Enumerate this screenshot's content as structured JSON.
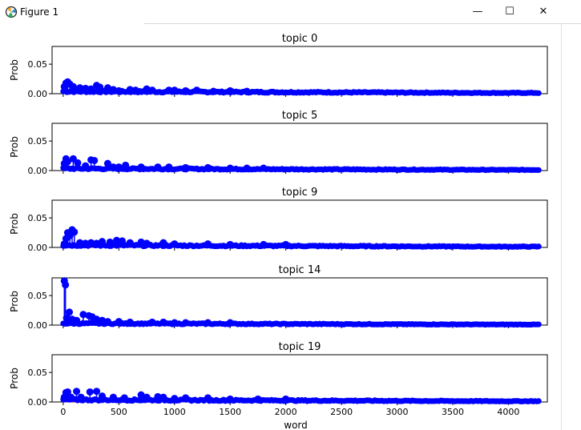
{
  "window": {
    "title": "Figure 1",
    "minimize_glyph": "—",
    "maximize_glyph": "☐",
    "close_glyph": "✕",
    "icon": "matplotlib-figure-icon"
  },
  "chart_data": {
    "type": "stem",
    "layout": "5 stacked subplots sharing x axis",
    "marker_color": "#0000ff",
    "xlabel": "word",
    "ylabel": "Prob",
    "xlim": [
      -100,
      4350
    ],
    "ylim": [
      0,
      0.08
    ],
    "xticks": [
      0,
      500,
      1000,
      1500,
      2000,
      2500,
      3000,
      3500,
      4000
    ],
    "yticks": [
      0.0,
      0.05
    ],
    "xtick_labels": [
      "0",
      "500",
      "1000",
      "1500",
      "2000",
      "2500",
      "3000",
      "3500",
      "4000"
    ],
    "ytick_labels": [
      "0.00",
      "0.05"
    ],
    "x_max": 4280,
    "subplots": [
      {
        "title": "topic 0",
        "peaks": [
          [
            10,
            0.012
          ],
          [
            25,
            0.018
          ],
          [
            40,
            0.02
          ],
          [
            60,
            0.016
          ],
          [
            90,
            0.012
          ],
          [
            150,
            0.01
          ],
          [
            200,
            0.009
          ],
          [
            250,
            0.008
          ],
          [
            300,
            0.014
          ],
          [
            330,
            0.011
          ],
          [
            400,
            0.01
          ],
          [
            450,
            0.007
          ],
          [
            500,
            0.005
          ],
          [
            600,
            0.007
          ],
          [
            650,
            0.006
          ],
          [
            750,
            0.008
          ],
          [
            800,
            0.006
          ],
          [
            950,
            0.006
          ],
          [
            1000,
            0.006
          ],
          [
            1100,
            0.005
          ],
          [
            1200,
            0.006
          ],
          [
            1350,
            0.004
          ],
          [
            1500,
            0.005
          ],
          [
            1650,
            0.004
          ]
        ],
        "baseline": 0.004
      },
      {
        "title": "topic 5",
        "peaks": [
          [
            10,
            0.012
          ],
          [
            25,
            0.02
          ],
          [
            40,
            0.015
          ],
          [
            90,
            0.02
          ],
          [
            130,
            0.013
          ],
          [
            200,
            0.008
          ],
          [
            250,
            0.018
          ],
          [
            280,
            0.017
          ],
          [
            400,
            0.012
          ],
          [
            450,
            0.006
          ],
          [
            500,
            0.006
          ],
          [
            560,
            0.009
          ],
          [
            700,
            0.006
          ],
          [
            850,
            0.006
          ],
          [
            950,
            0.006
          ],
          [
            1100,
            0.005
          ],
          [
            1300,
            0.005
          ],
          [
            1500,
            0.004
          ],
          [
            1650,
            0.004
          ],
          [
            1800,
            0.004
          ]
        ],
        "baseline": 0.0035
      },
      {
        "title": "topic 9",
        "peaks": [
          [
            10,
            0.006
          ],
          [
            25,
            0.015
          ],
          [
            40,
            0.025
          ],
          [
            60,
            0.02
          ],
          [
            80,
            0.03
          ],
          [
            100,
            0.026
          ],
          [
            150,
            0.008
          ],
          [
            200,
            0.007
          ],
          [
            250,
            0.008
          ],
          [
            300,
            0.007
          ],
          [
            350,
            0.01
          ],
          [
            420,
            0.009
          ],
          [
            480,
            0.012
          ],
          [
            530,
            0.011
          ],
          [
            600,
            0.008
          ],
          [
            700,
            0.009
          ],
          [
            750,
            0.007
          ],
          [
            900,
            0.008
          ],
          [
            1000,
            0.006
          ],
          [
            1300,
            0.006
          ],
          [
            1500,
            0.005
          ],
          [
            1800,
            0.005
          ],
          [
            2000,
            0.005
          ]
        ],
        "baseline": 0.004
      },
      {
        "title": "topic 14",
        "peaks": [
          [
            10,
            0.075
          ],
          [
            20,
            0.068
          ],
          [
            30,
            0.012
          ],
          [
            55,
            0.022
          ],
          [
            80,
            0.01
          ],
          [
            120,
            0.008
          ],
          [
            180,
            0.018
          ],
          [
            230,
            0.016
          ],
          [
            260,
            0.014
          ],
          [
            300,
            0.01
          ],
          [
            350,
            0.008
          ],
          [
            400,
            0.006
          ],
          [
            500,
            0.006
          ],
          [
            600,
            0.005
          ],
          [
            800,
            0.005
          ],
          [
            900,
            0.005
          ],
          [
            1000,
            0.004
          ],
          [
            1100,
            0.004
          ],
          [
            1300,
            0.004
          ],
          [
            1500,
            0.004
          ]
        ],
        "baseline": 0.003
      },
      {
        "title": "topic 19",
        "peaks": [
          [
            10,
            0.008
          ],
          [
            25,
            0.016
          ],
          [
            40,
            0.017
          ],
          [
            70,
            0.008
          ],
          [
            120,
            0.018
          ],
          [
            160,
            0.008
          ],
          [
            240,
            0.017
          ],
          [
            300,
            0.018
          ],
          [
            350,
            0.01
          ],
          [
            450,
            0.008
          ],
          [
            550,
            0.007
          ],
          [
            700,
            0.012
          ],
          [
            750,
            0.008
          ],
          [
            850,
            0.009
          ],
          [
            900,
            0.008
          ],
          [
            1000,
            0.006
          ],
          [
            1100,
            0.007
          ],
          [
            1300,
            0.007
          ],
          [
            1500,
            0.005
          ],
          [
            1750,
            0.005
          ],
          [
            2000,
            0.005
          ]
        ],
        "baseline": 0.004
      }
    ]
  }
}
